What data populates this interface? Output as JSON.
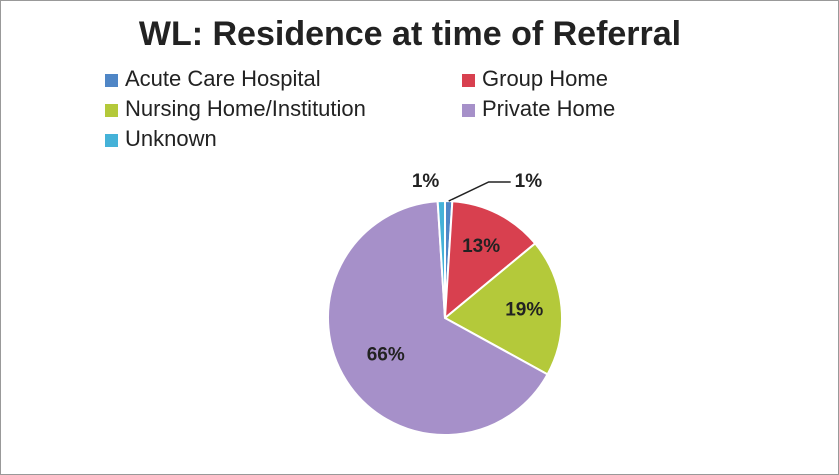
{
  "chart_data": {
    "type": "pie",
    "title": "WL: Residence at time of Referral",
    "categories": [
      "Acute Care Hospital",
      "Group Home",
      "Nursing Home/Institution",
      "Private Home",
      "Unknown"
    ],
    "values": [
      1,
      13,
      19,
      66,
      1
    ],
    "value_labels": [
      "1%",
      "13%",
      "19%",
      "66%",
      "1%"
    ],
    "colors": [
      "#4f86c6",
      "#d8404f",
      "#b4c93a",
      "#a690c9",
      "#45b2d8"
    ],
    "legend": "top"
  }
}
